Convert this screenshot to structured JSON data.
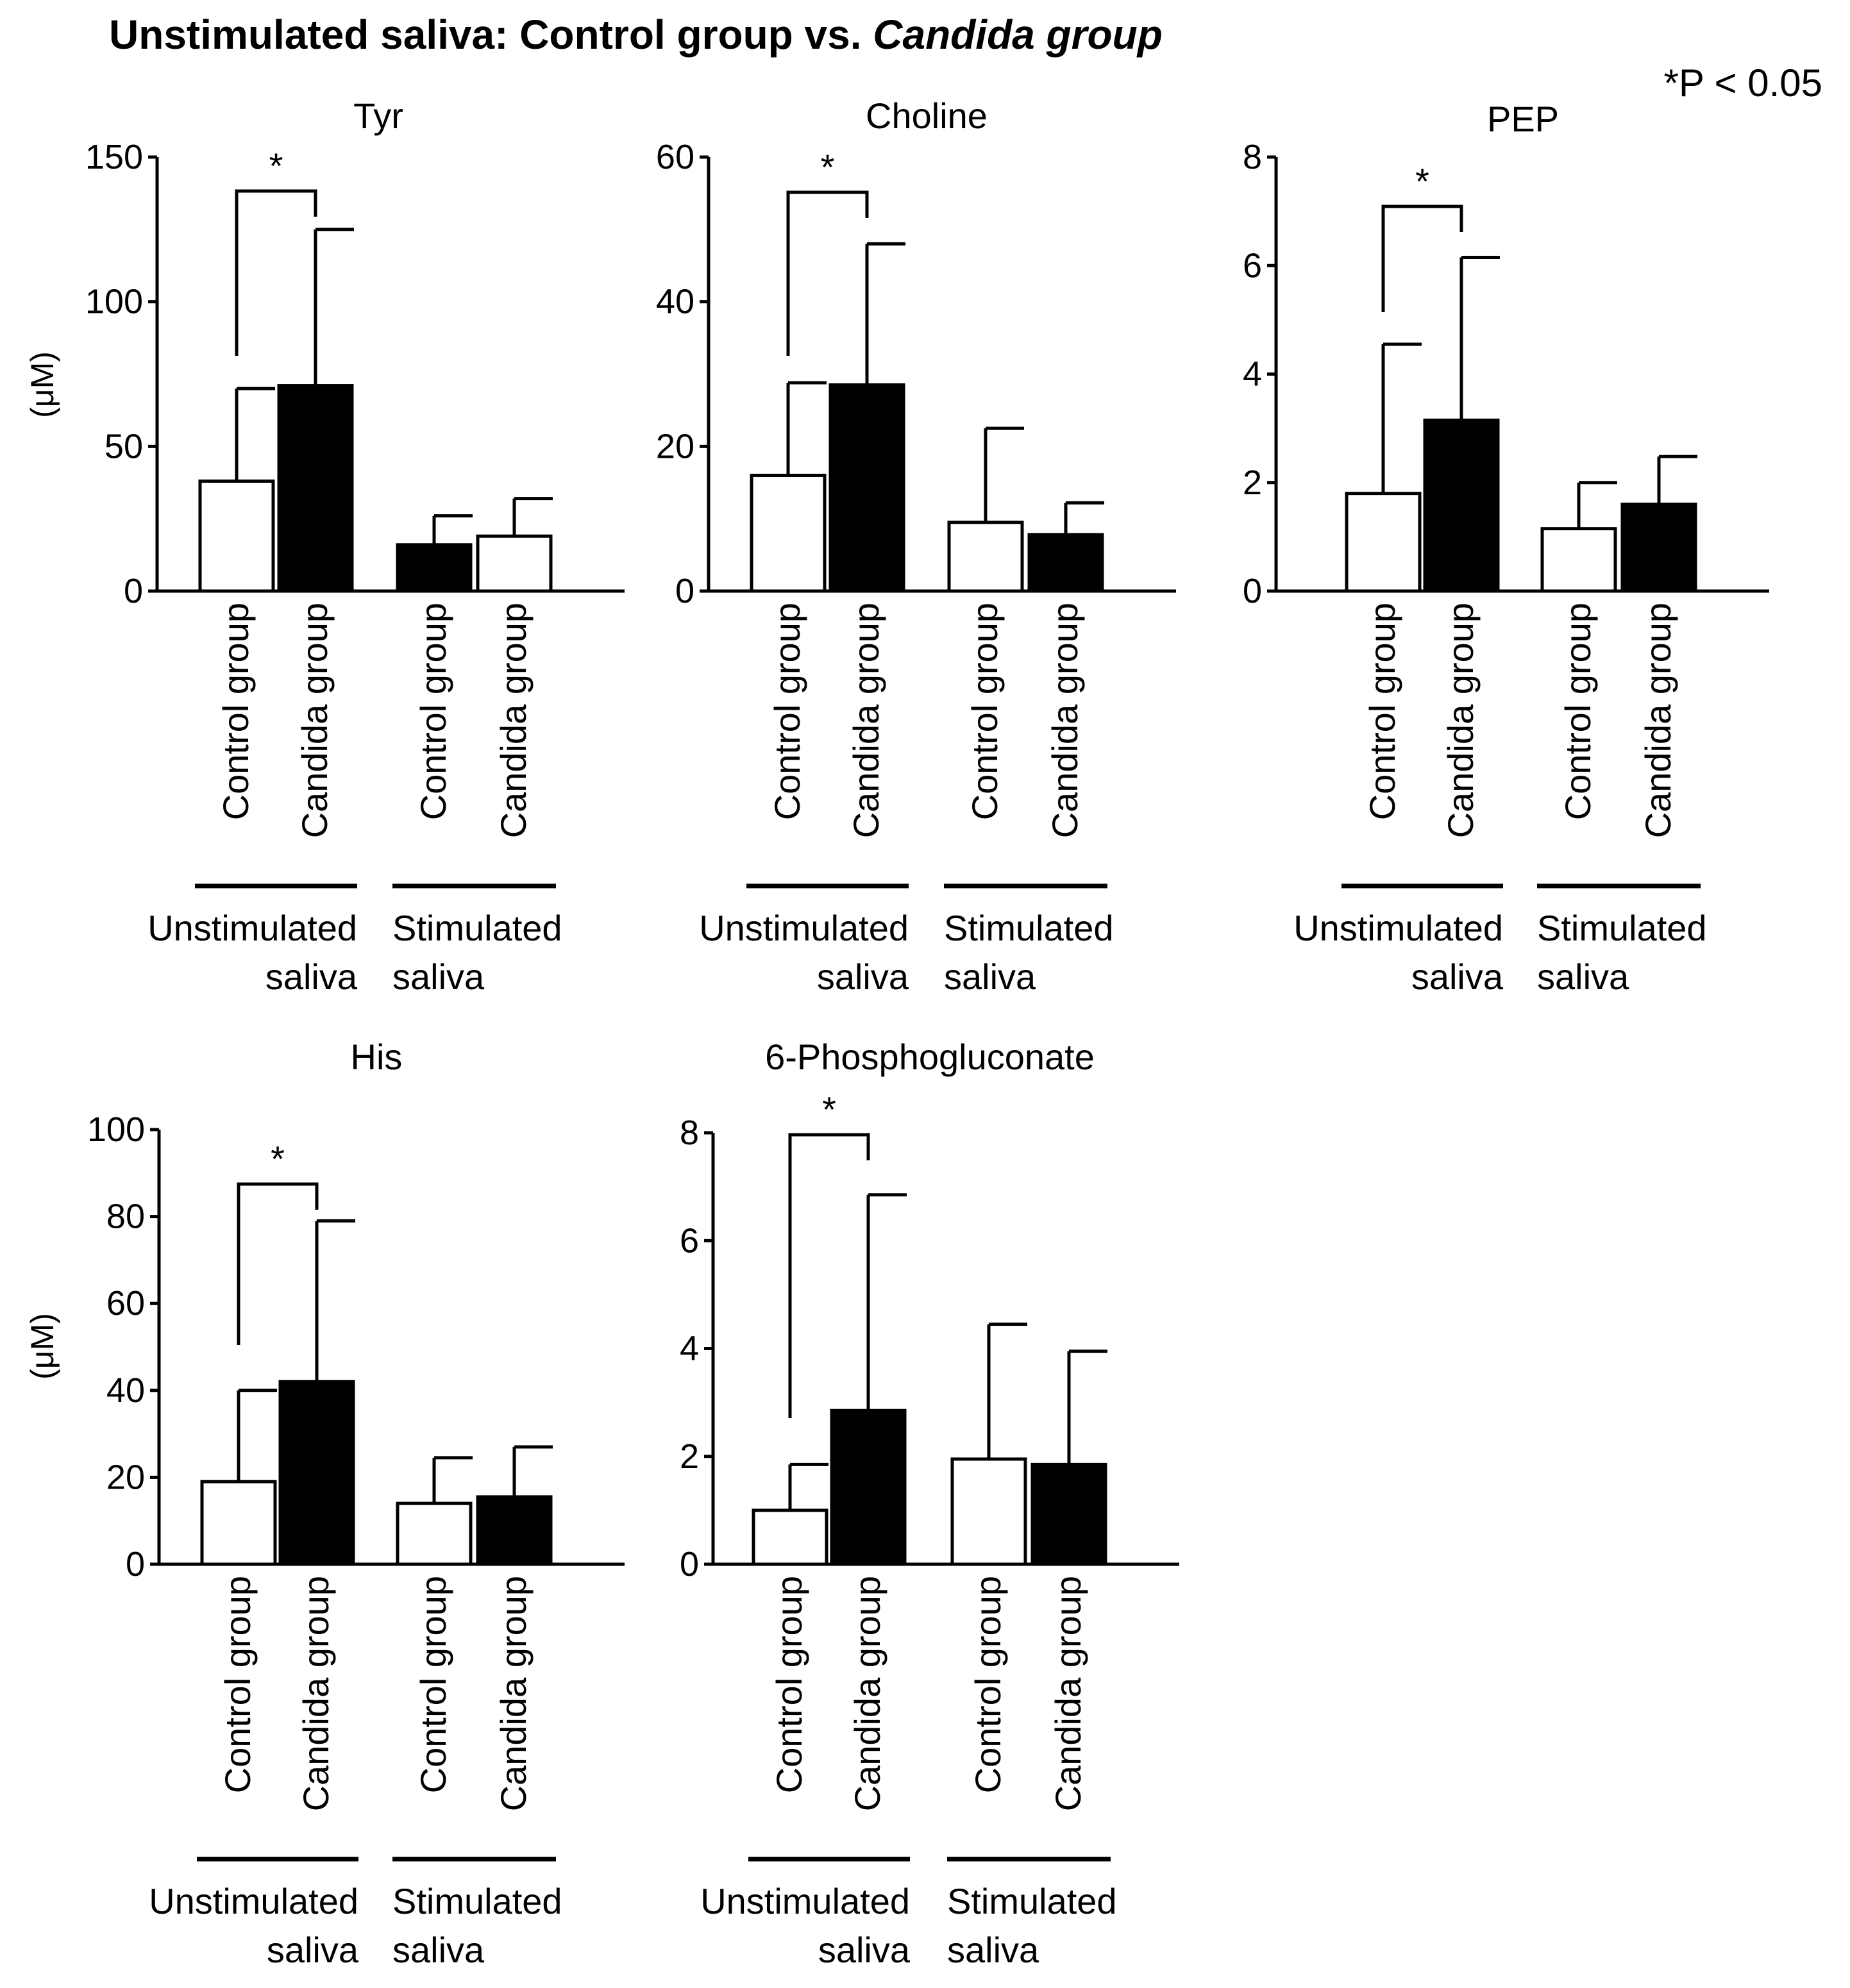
{
  "figure": {
    "title_main": "Unstimulated saliva: Control group vs. ",
    "title_italic": "Candida group",
    "significance_note": "*P < 0.05"
  },
  "chart_data": [
    {
      "type": "bar",
      "title": "Tyr",
      "ylabel": "(μM)",
      "ylim": [
        0,
        150
      ],
      "yticks": [
        "0",
        "50",
        "100",
        "150"
      ],
      "categories": [
        "Control group",
        "Candida group",
        "Control group",
        "Candida group"
      ],
      "groups": [
        "Unstimulated\nsaliva",
        "Stimulated\nsaliva"
      ],
      "values": [
        38,
        71,
        16,
        19
      ],
      "errors": [
        32,
        54,
        10,
        13
      ],
      "fills": [
        "#ffffff",
        "#000000",
        "#000000",
        "#ffffff"
      ],
      "significance": {
        "between": [
          0,
          1
        ],
        "label": "*"
      }
    },
    {
      "type": "bar",
      "title": "Choline",
      "ylabel": "",
      "ylim": [
        0,
        60
      ],
      "yticks": [
        "0",
        "20",
        "40",
        "60"
      ],
      "categories": [
        "Control group",
        "Candida group",
        "Control group",
        "Candida group"
      ],
      "groups": [
        "Unstimulated\nsaliva",
        "Stimulated\nsaliva"
      ],
      "values": [
        16,
        28.5,
        9.5,
        7.8
      ],
      "errors": [
        12.8,
        19.5,
        13,
        4.4
      ],
      "fills": [
        "#ffffff",
        "#000000",
        "#ffffff",
        "#000000"
      ],
      "significance": {
        "between": [
          0,
          1
        ],
        "label": "*"
      }
    },
    {
      "type": "bar",
      "title": "PEP",
      "ylabel": "",
      "ylim": [
        0,
        8
      ],
      "yticks": [
        "0",
        "2",
        "4",
        "6",
        "8"
      ],
      "categories": [
        "Control group",
        "Candida group",
        "Control group",
        "Candida group"
      ],
      "groups": [
        "Unstimulated\nsaliva",
        "Stimulated\nsaliva"
      ],
      "values": [
        1.8,
        3.15,
        1.15,
        1.6
      ],
      "errors": [
        2.75,
        3.0,
        0.85,
        0.88
      ],
      "fills": [
        "#ffffff",
        "#000000",
        "#ffffff",
        "#000000"
      ],
      "significance": {
        "between": [
          0,
          1
        ],
        "label": "*"
      }
    },
    {
      "type": "bar",
      "title": "His",
      "ylabel": "(μM)",
      "ylim": [
        0,
        100
      ],
      "yticks": [
        "0",
        "20",
        "40",
        "60",
        "80",
        "100"
      ],
      "categories": [
        "Control  group",
        "Candida group",
        "Control  group",
        "Candida group"
      ],
      "groups": [
        "Unstimulated\nsaliva",
        "Stimulated\nsaliva"
      ],
      "values": [
        19,
        42,
        14,
        15.5
      ],
      "errors": [
        21,
        37,
        10.5,
        11.5
      ],
      "fills": [
        "#ffffff",
        "#000000",
        "#ffffff",
        "#000000"
      ],
      "significance": {
        "between": [
          0,
          1
        ],
        "label": "*"
      }
    },
    {
      "type": "bar",
      "title": "6-Phosphogluconate",
      "ylabel": "",
      "ylim": [
        0,
        8
      ],
      "yticks": [
        "0",
        "2",
        "4",
        "6",
        "8"
      ],
      "categories": [
        "Control  group",
        "Candida group",
        "Control  group",
        "Candida group"
      ],
      "groups": [
        "Unstimulated\nsaliva",
        "Stimulated\nsaliva"
      ],
      "values": [
        1.0,
        2.85,
        1.95,
        1.85
      ],
      "errors": [
        0.85,
        4.0,
        2.5,
        2.1
      ],
      "fills": [
        "#ffffff",
        "#000000",
        "#ffffff",
        "#000000"
      ],
      "significance": {
        "between": [
          0,
          1
        ],
        "label": "*"
      }
    }
  ]
}
